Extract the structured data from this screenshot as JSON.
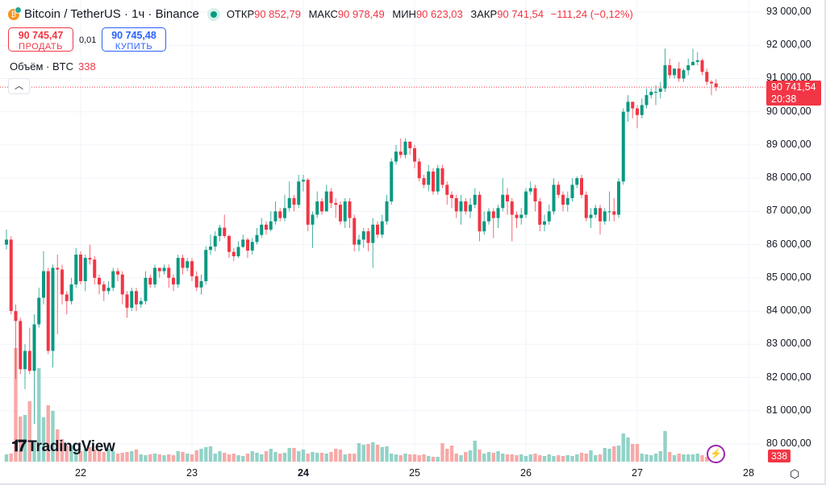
{
  "header": {
    "symbol_title": "Bitcoin / TetherUS · 1ч · Binance",
    "logo_icon": "bitcoin-icon",
    "market_status": "market-open-dot",
    "ohlc": {
      "open_label": "ОТКР",
      "open": "90 852,79",
      "high_label": "МАКС",
      "high": "90 978,49",
      "low_label": "МИН",
      "low": "90 623,03",
      "close_label": "ЗАКР",
      "close": "90 741,54",
      "change": "−111,24 (−0,12%)"
    }
  },
  "trade": {
    "sell_price": "90 745,47",
    "sell_label": "ПРОДАТЬ",
    "spread": "0,01",
    "buy_price": "90 745,48",
    "buy_label": "КУПИТЬ"
  },
  "volume_legend": {
    "label": "Объём · BTC",
    "value": "338"
  },
  "price_axis": {
    "labels": [
      "93 000,00",
      "92 000,00",
      "91 000,00",
      "90 000,00",
      "89 000,00",
      "88 000,00",
      "87 000,00",
      "86 000,00",
      "85 000,00",
      "84 000,00",
      "83 000,00",
      "82 000,00",
      "81 000,00",
      "80 000,00"
    ],
    "current_price": "90 741,54",
    "countdown": "20:38",
    "volume_badge": "338"
  },
  "time_axis": {
    "labels": [
      "22",
      "23",
      "24",
      "25",
      "26",
      "27",
      "28"
    ],
    "bold": "24"
  },
  "branding": {
    "logo_text": "TradingView"
  },
  "colors": {
    "up": "#089981",
    "down": "#f23645",
    "buy": "#2962ff",
    "up_volume": "#92d2c7",
    "down_volume": "#f7a9a7"
  },
  "chart_data": {
    "type": "candlestick",
    "title": "Bitcoin / TetherUS · 1ч · Binance",
    "interval": "1h",
    "ylim": [
      80000,
      93000
    ],
    "grid": true,
    "x_ticks": [
      "22",
      "23",
      "24",
      "25",
      "26",
      "27",
      "28"
    ],
    "first_candle_offset_hours_before_22": 16,
    "candles": [
      [
        86000,
        86450,
        85850,
        86150
      ],
      [
        86150,
        86250,
        83900,
        84000
      ],
      [
        84000,
        84200,
        81950,
        83700
      ],
      [
        83700,
        83800,
        82100,
        82250
      ],
      [
        82250,
        83000,
        81650,
        82800
      ],
      [
        82800,
        83500,
        82100,
        82200
      ],
      [
        82200,
        83900,
        80600,
        83600
      ],
      [
        83600,
        84700,
        83500,
        84400
      ],
      [
        84400,
        85800,
        84200,
        85200
      ],
      [
        85200,
        85300,
        82700,
        82800
      ],
      [
        82800,
        85400,
        82300,
        85300
      ],
      [
        85300,
        85700,
        83300,
        85250
      ],
      [
        85250,
        85400,
        84200,
        84500
      ],
      [
        84500,
        84600,
        83900,
        84300
      ],
      [
        84300,
        85000,
        84200,
        84800
      ],
      [
        84800,
        85900,
        84700,
        85700
      ],
      [
        85700,
        85800,
        84800,
        84900
      ],
      [
        84900,
        85700,
        84600,
        85600
      ],
      [
        85600,
        86000,
        85400,
        85550
      ],
      [
        85550,
        85650,
        84800,
        85000
      ],
      [
        85000,
        85100,
        84500,
        84800
      ],
      [
        84800,
        84900,
        84300,
        84600
      ],
      [
        84600,
        84900,
        84500,
        84700
      ],
      [
        84700,
        85300,
        84600,
        85200
      ],
      [
        85200,
        85300,
        84900,
        85100
      ],
      [
        85100,
        85200,
        84200,
        84500
      ],
      [
        84500,
        84600,
        83800,
        84100
      ],
      [
        84100,
        84700,
        84000,
        84600
      ],
      [
        84600,
        84700,
        84000,
        84200
      ],
      [
        84200,
        84400,
        84100,
        84300
      ],
      [
        84300,
        85200,
        84200,
        85000
      ],
      [
        85000,
        85100,
        84700,
        84800
      ],
      [
        84800,
        85400,
        84700,
        85300
      ],
      [
        85300,
        85300,
        85000,
        85200
      ],
      [
        85200,
        85400,
        85100,
        85300
      ],
      [
        85300,
        85400,
        84700,
        85000
      ],
      [
        85000,
        85100,
        84600,
        84800
      ],
      [
        84800,
        85700,
        84700,
        85600
      ],
      [
        85600,
        85700,
        85100,
        85300
      ],
      [
        85300,
        85600,
        85200,
        85500
      ],
      [
        85500,
        85600,
        84900,
        85050
      ],
      [
        85050,
        85200,
        84600,
        84710
      ],
      [
        84710,
        85100,
        84500,
        84900
      ],
      [
        84900,
        85950,
        84800,
        85840
      ],
      [
        85840,
        86300,
        85700,
        85940
      ],
      [
        85940,
        86400,
        85800,
        86260
      ],
      [
        86260,
        86600,
        86100,
        86510
      ],
      [
        86510,
        86900,
        86200,
        86260
      ],
      [
        86260,
        86300,
        85600,
        85780
      ],
      [
        85780,
        85900,
        85500,
        85650
      ],
      [
        85650,
        86100,
        85600,
        85930
      ],
      [
        85930,
        86300,
        85900,
        86150
      ],
      [
        86150,
        86200,
        85600,
        85820
      ],
      [
        85820,
        86200,
        85700,
        86080
      ],
      [
        86080,
        86500,
        86000,
        86290
      ],
      [
        86290,
        86800,
        86200,
        86600
      ],
      [
        86600,
        86700,
        86300,
        86450
      ],
      [
        86450,
        87000,
        86400,
        86700
      ],
      [
        86700,
        87300,
        86600,
        87000
      ],
      [
        87000,
        87100,
        86700,
        86800
      ],
      [
        86800,
        87500,
        86700,
        87100
      ],
      [
        87100,
        87900,
        87000,
        87400
      ],
      [
        87400,
        87500,
        87000,
        87200
      ],
      [
        87200,
        88100,
        87100,
        87900
      ],
      [
        87900,
        88100,
        87600,
        87950
      ],
      [
        87950,
        88000,
        86400,
        86600
      ],
      [
        86600,
        87000,
        85900,
        86900
      ],
      [
        86900,
        87600,
        86800,
        87300
      ],
      [
        87300,
        87400,
        86900,
        87000
      ],
      [
        87000,
        87800,
        87000,
        87600
      ],
      [
        87600,
        87700,
        87100,
        87250
      ],
      [
        87250,
        87400,
        86800,
        87200
      ],
      [
        87200,
        87300,
        86600,
        86700
      ],
      [
        86700,
        87400,
        86500,
        87300
      ],
      [
        87300,
        87400,
        86500,
        86800
      ],
      [
        86800,
        86900,
        85800,
        86000
      ],
      [
        86000,
        86300,
        85800,
        86150
      ],
      [
        86150,
        86500,
        85900,
        86400
      ],
      [
        86400,
        86500,
        85800,
        86050
      ],
      [
        86050,
        86800,
        85300,
        86600
      ],
      [
        86600,
        86700,
        86200,
        86300
      ],
      [
        86300,
        86900,
        86200,
        86700
      ],
      [
        86700,
        87500,
        86600,
        87300
      ],
      [
        87300,
        88600,
        87200,
        88500
      ],
      [
        88500,
        89000,
        88400,
        88800
      ],
      [
        88800,
        89200,
        88600,
        88700
      ],
      [
        88700,
        89200,
        88600,
        89100
      ],
      [
        89100,
        89100,
        88700,
        88900
      ],
      [
        88900,
        89000,
        88300,
        88500
      ],
      [
        88500,
        88600,
        87900,
        88000
      ],
      [
        88000,
        88100,
        87700,
        87800
      ],
      [
        87800,
        88400,
        87600,
        88200
      ],
      [
        88200,
        88300,
        87500,
        87600
      ],
      [
        87600,
        88400,
        87500,
        88300
      ],
      [
        88300,
        88400,
        87700,
        87800
      ],
      [
        87800,
        87900,
        87200,
        87500
      ],
      [
        87500,
        87600,
        87100,
        87400
      ],
      [
        87400,
        87500,
        86800,
        87000
      ],
      [
        87000,
        87500,
        86600,
        87300
      ],
      [
        87300,
        87400,
        86900,
        87000
      ],
      [
        87000,
        87400,
        86800,
        87200
      ],
      [
        87200,
        87700,
        87100,
        87500
      ],
      [
        87500,
        87600,
        86100,
        86400
      ],
      [
        86400,
        87000,
        86300,
        86700
      ],
      [
        86700,
        87100,
        86600,
        87000
      ],
      [
        87000,
        87100,
        86200,
        86800
      ],
      [
        86800,
        87200,
        86500,
        87100
      ],
      [
        87100,
        88000,
        87000,
        87500
      ],
      [
        87500,
        87700,
        86900,
        87300
      ],
      [
        87300,
        87400,
        86100,
        86900
      ],
      [
        86900,
        87000,
        86500,
        86800
      ],
      [
        86800,
        87100,
        86600,
        86900
      ],
      [
        86900,
        87700,
        86800,
        87600
      ],
      [
        87600,
        87900,
        87500,
        87700
      ],
      [
        87700,
        87800,
        87000,
        87300
      ],
      [
        87300,
        87400,
        86400,
        86600
      ],
      [
        86600,
        86900,
        86400,
        86700
      ],
      [
        86700,
        87200,
        86600,
        87000
      ],
      [
        87000,
        88000,
        86900,
        87800
      ],
      [
        87800,
        87900,
        87400,
        87500
      ],
      [
        87500,
        87600,
        87000,
        87200
      ],
      [
        87200,
        87600,
        87000,
        87400
      ],
      [
        87400,
        88000,
        87300,
        87800
      ],
      [
        87800,
        88050,
        87700,
        88000
      ],
      [
        88000,
        88100,
        87400,
        87500
      ],
      [
        87500,
        87600,
        86700,
        86800
      ],
      [
        86800,
        87100,
        86500,
        86900
      ],
      [
        86900,
        87200,
        86800,
        87100
      ],
      [
        87100,
        87200,
        86300,
        86700
      ],
      [
        86700,
        87100,
        86600,
        87000
      ],
      [
        87000,
        87600,
        86700,
        87000
      ],
      [
        87000,
        87400,
        86700,
        86900
      ],
      [
        86900,
        88000,
        86800,
        87900
      ],
      [
        87900,
        90100,
        87800,
        90000
      ],
      [
        90000,
        90500,
        89700,
        90300
      ],
      [
        90300,
        90300,
        89800,
        90100
      ],
      [
        90100,
        90200,
        89500,
        89900
      ],
      [
        89900,
        90400,
        89800,
        90200
      ],
      [
        90200,
        90700,
        90100,
        90500
      ],
      [
        90500,
        90700,
        90400,
        90600
      ],
      [
        90600,
        90800,
        90200,
        90600
      ],
      [
        90600,
        90900,
        90400,
        90700
      ],
      [
        90700,
        91900,
        90600,
        91400
      ],
      [
        91400,
        91600,
        91000,
        91100
      ],
      [
        91100,
        91300,
        91000,
        91300
      ],
      [
        91300,
        91500,
        90900,
        91000
      ],
      [
        91000,
        91300,
        90900,
        91250
      ],
      [
        91250,
        91600,
        91100,
        91400
      ],
      [
        91400,
        91900,
        91400,
        91500
      ],
      [
        91500,
        91800,
        91400,
        91550
      ],
      [
        91550,
        91600,
        91100,
        91200
      ],
      [
        91200,
        91300,
        90800,
        90900
      ],
      [
        90900,
        90950,
        90500,
        90852.79
      ],
      [
        90852.79,
        90978.49,
        90623.03,
        90741.54
      ]
    ],
    "volume": [
      900,
      1000,
      14100,
      5600,
      5800,
      7500,
      2500,
      11600,
      5500,
      7000,
      6300,
      4000,
      2800,
      2000,
      2000,
      1500,
      1300,
      1600,
      1800,
      1500,
      1400,
      1200,
      1600,
      1300,
      1000,
      1100,
      1200,
      1300,
      1500,
      900,
      800,
      900,
      1000,
      900,
      800,
      900,
      800,
      1300,
      1200,
      1000,
      900,
      1400,
      1600,
      1800,
      1900,
      1000,
      1300,
      1100,
      900,
      1000,
      800,
      700,
      1000,
      1300,
      1100,
      900,
      1300,
      1600,
      1200,
      1000,
      1100,
      1700,
      1700,
      1300,
      1500,
      1000,
      1200,
      1100,
      1100,
      1000,
      1200,
      1600,
      1500,
      900,
      1000,
      1000,
      2300,
      2100,
      2200,
      2400,
      2100,
      1800,
      1900,
      1000,
      900,
      800,
      1000,
      900,
      900,
      800,
      900,
      700,
      600,
      600,
      2300,
      1600,
      2000,
      1000,
      800,
      1200,
      1400,
      2600,
      1500,
      1000,
      1200,
      1100,
      1300,
      1000,
      900,
      900,
      800,
      900,
      700,
      900,
      1000,
      800,
      700,
      900,
      700,
      800,
      700,
      800,
      700,
      900,
      1100,
      1000,
      1400,
      800,
      900,
      1700,
      1600,
      1900,
      2000,
      3500,
      3000,
      2200,
      2200,
      1000,
      900,
      800,
      1000,
      1300,
      3800,
      1200,
      800,
      1000,
      900,
      900,
      900,
      1000,
      800,
      600,
      500,
      338
    ],
    "last_price": 90741.54
  }
}
